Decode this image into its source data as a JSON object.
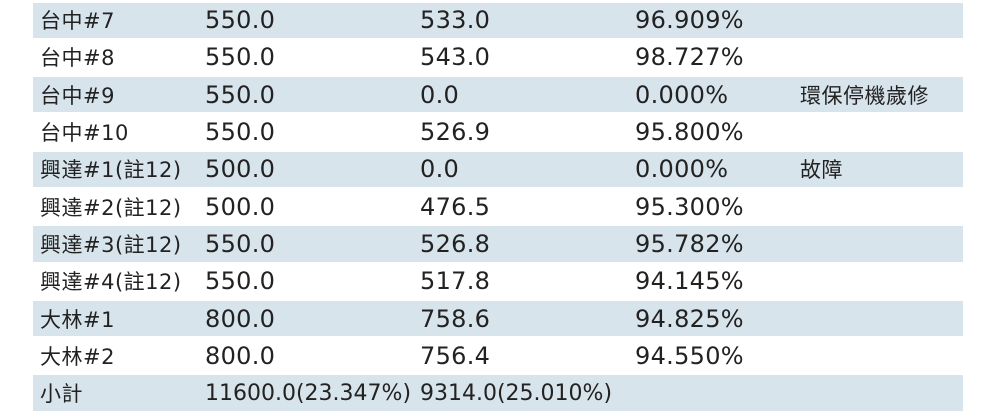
{
  "colors": {
    "row_shade": "#d8e4ec",
    "text": "#222222",
    "background": "#ffffff"
  },
  "table": {
    "rows": [
      {
        "name": "台中#7",
        "capacity": "550.0",
        "generation": "533.0",
        "ratio": "96.909%",
        "remark": ""
      },
      {
        "name": "台中#8",
        "capacity": "550.0",
        "generation": "543.0",
        "ratio": "98.727%",
        "remark": ""
      },
      {
        "name": "台中#9",
        "capacity": "550.0",
        "generation": "0.0",
        "ratio": "0.000%",
        "remark": "環保停機歲修"
      },
      {
        "name": "台中#10",
        "capacity": "550.0",
        "generation": "526.9",
        "ratio": "95.800%",
        "remark": ""
      },
      {
        "name": "興達#1(註12)",
        "capacity": "500.0",
        "generation": "0.0",
        "ratio": "0.000%",
        "remark": "故障"
      },
      {
        "name": "興達#2(註12)",
        "capacity": "500.0",
        "generation": "476.5",
        "ratio": "95.300%",
        "remark": ""
      },
      {
        "name": "興達#3(註12)",
        "capacity": "550.0",
        "generation": "526.8",
        "ratio": "95.782%",
        "remark": ""
      },
      {
        "name": "興達#4(註12)",
        "capacity": "550.0",
        "generation": "517.8",
        "ratio": "94.145%",
        "remark": ""
      },
      {
        "name": "大林#1",
        "capacity": "800.0",
        "generation": "758.6",
        "ratio": "94.825%",
        "remark": ""
      },
      {
        "name": "大林#2",
        "capacity": "800.0",
        "generation": "756.4",
        "ratio": "94.550%",
        "remark": ""
      },
      {
        "name": "小計",
        "capacity": "11600.0(23.347%)",
        "generation": "9314.0(25.010%)",
        "ratio": "",
        "remark": ""
      }
    ]
  }
}
